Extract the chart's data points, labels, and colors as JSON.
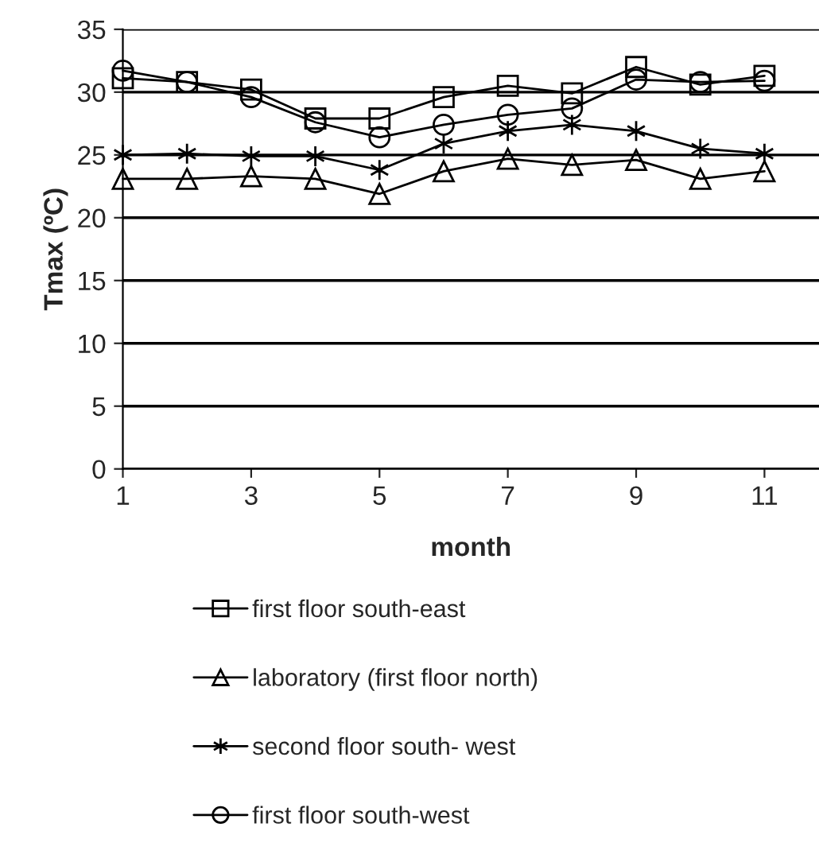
{
  "chart_data": {
    "type": "line",
    "xlabel": "month",
    "ylabel": "Tmax (ºC)",
    "x": [
      1,
      2,
      3,
      4,
      5,
      6,
      7,
      8,
      9,
      10,
      11
    ],
    "xlim": [
      1,
      11.85
    ],
    "xticks": [
      1,
      3,
      5,
      7,
      9,
      11
    ],
    "ylim": [
      0,
      35
    ],
    "yticks": [
      0,
      5,
      10,
      15,
      20,
      25,
      30,
      35
    ],
    "grid": "y",
    "legend": "bottom",
    "line_style": "solid",
    "series": [
      {
        "name": "first floor south-east",
        "color": "#000000",
        "marker": "square",
        "values": [
          31.1,
          30.8,
          30.2,
          27.9,
          27.9,
          29.6,
          30.5,
          29.9,
          32.0,
          30.6,
          31.3
        ]
      },
      {
        "name": "laboratory (first floor north)",
        "color": "#000000",
        "marker": "triangle",
        "values": [
          23.1,
          23.1,
          23.3,
          23.1,
          21.9,
          23.7,
          24.7,
          24.2,
          24.6,
          23.1,
          23.7
        ]
      },
      {
        "name": "second floor south- west",
        "color": "#000000",
        "marker": "cross",
        "values": [
          25.0,
          25.1,
          24.9,
          24.9,
          23.8,
          25.9,
          26.9,
          27.4,
          26.9,
          25.5,
          25.1
        ]
      },
      {
        "name": "first floor south-west",
        "color": "#000000",
        "marker": "circle",
        "values": [
          31.7,
          30.8,
          29.6,
          27.6,
          26.4,
          27.4,
          28.2,
          28.7,
          31.0,
          30.8,
          30.9
        ]
      }
    ]
  }
}
